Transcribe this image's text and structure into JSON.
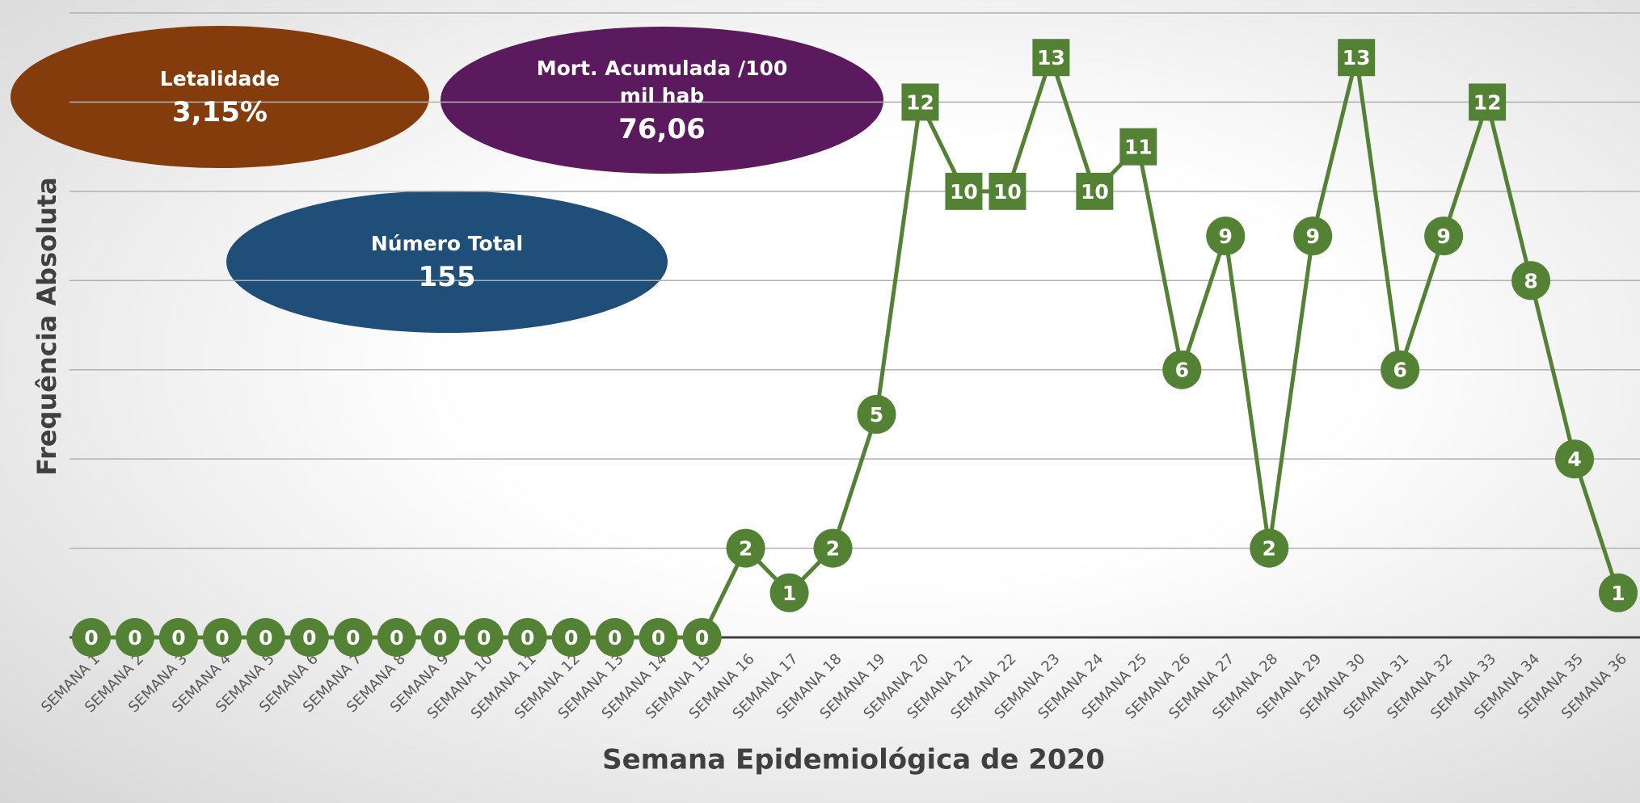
{
  "chart_data": {
    "type": "line",
    "x_label": "Semana Epidemiológica de 2020",
    "y_label": "Frequência Absoluta",
    "categories": [
      "SEMANA 1",
      "SEMANA 2",
      "SEMANA 3",
      "SEMANA 4",
      "SEMANA 5",
      "SEMANA 6",
      "SEMANA 7",
      "SEMANA 8",
      "SEMANA 9",
      "SEMANA 10",
      "SEMANA 11",
      "SEMANA 12",
      "SEMANA 13",
      "SEMANA 14",
      "SEMANA 15",
      "SEMANA 16",
      "SEMANA 17",
      "SEMANA 18",
      "SEMANA 19",
      "SEMANA 20",
      "SEMANA 21",
      "SEMANA 22",
      "SEMANA 23",
      "SEMANA 24",
      "SEMANA 25",
      "SEMANA 26",
      "SEMANA 27",
      "SEMANA 28",
      "SEMANA 29",
      "SEMANA 30",
      "SEMANA 31",
      "SEMANA 32",
      "SEMANA 33",
      "SEMANA 34",
      "SEMANA 35",
      "SEMANA 36"
    ],
    "series": [
      {
        "color": "#548235",
        "values": [
          0,
          0,
          0,
          0,
          0,
          0,
          0,
          0,
          0,
          0,
          0,
          0,
          0,
          0,
          0,
          2,
          1,
          2,
          5,
          12,
          10,
          10,
          13,
          10,
          11,
          6,
          9,
          2,
          9,
          13,
          6,
          9,
          12,
          8,
          4,
          1
        ],
        "markers": [
          "circle",
          "circle",
          "circle",
          "circle",
          "circle",
          "circle",
          "circle",
          "circle",
          "circle",
          "circle",
          "circle",
          "circle",
          "circle",
          "circle",
          "circle",
          "circle",
          "circle",
          "circle",
          "circle",
          "square",
          "square",
          "square",
          "square",
          "square",
          "square",
          "circle",
          "circle",
          "circle",
          "circle",
          "square",
          "circle",
          "circle",
          "square",
          "circle",
          "circle",
          "circle"
        ]
      }
    ],
    "ylim": [
      0,
      14
    ],
    "yticks": [
      0,
      2,
      4,
      6,
      8,
      10,
      12,
      14
    ],
    "grid": true,
    "annotations": [
      {
        "label": "Letalidade",
        "value": "3,15%",
        "color": "#843c0c"
      },
      {
        "label": "Mort. Acumulada /100 mil hab",
        "value": "76,06",
        "color": "#5b1a5e"
      },
      {
        "label": "Número Total",
        "value": "155",
        "color": "#1f4e79"
      }
    ]
  }
}
